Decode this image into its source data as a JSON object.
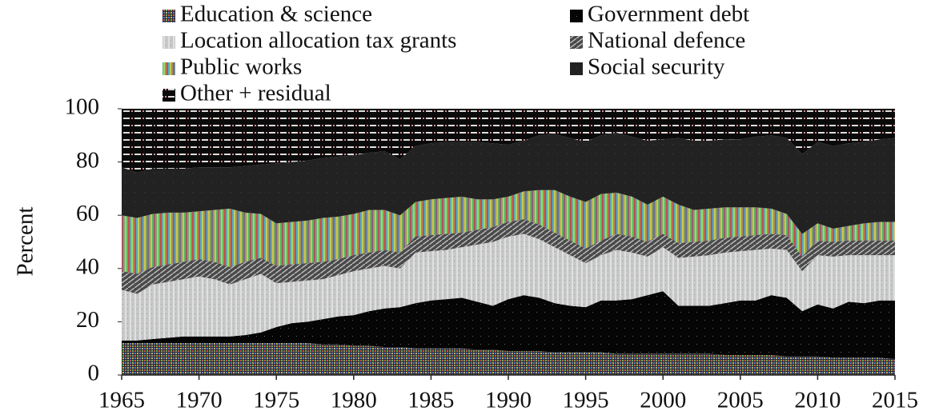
{
  "chart_data": {
    "type": "stacked_area",
    "y_label": "Percent",
    "x": [
      1965,
      1966,
      1967,
      1968,
      1969,
      1970,
      1971,
      1972,
      1973,
      1974,
      1975,
      1976,
      1977,
      1978,
      1979,
      1980,
      1981,
      1982,
      1983,
      1984,
      1985,
      1986,
      1987,
      1988,
      1989,
      1990,
      1991,
      1992,
      1993,
      1994,
      1995,
      1996,
      1997,
      1998,
      1999,
      2000,
      2001,
      2002,
      2003,
      2004,
      2005,
      2006,
      2007,
      2008,
      2009,
      2010,
      2011,
      2012,
      2013,
      2014,
      2015
    ],
    "xlim": [
      1965,
      2015
    ],
    "xticks": [
      1965,
      1970,
      1975,
      1980,
      1985,
      1990,
      1995,
      2000,
      2005,
      2010,
      2015
    ],
    "ylim": [
      0,
      100
    ],
    "yticks": [
      0,
      20,
      40,
      60,
      80,
      100
    ],
    "series": [
      {
        "name": "Education & science",
        "color": "#2a2a3a",
        "values": [
          12,
          12,
          12,
          12,
          12,
          12,
          12,
          12,
          12,
          12,
          12,
          12,
          12,
          11.5,
          11.5,
          11,
          11,
          10.5,
          10.5,
          10,
          10,
          10,
          10,
          9.5,
          9.5,
          9,
          9,
          9,
          8.5,
          8.5,
          8.5,
          8.5,
          8,
          8,
          8,
          8,
          8,
          8,
          8,
          7.5,
          7.5,
          7.5,
          7.5,
          7,
          7,
          7,
          6.5,
          6.5,
          6.5,
          6.5,
          6
        ]
      },
      {
        "name": "Government debt",
        "color": "#050505",
        "values": [
          1,
          1,
          1.5,
          2,
          2.5,
          2.5,
          2.5,
          2.5,
          3,
          4,
          6,
          7.5,
          8,
          9.5,
          10.5,
          11.5,
          13,
          14.5,
          15,
          17,
          18,
          18.5,
          19,
          18,
          16.5,
          19.5,
          21,
          20,
          18.5,
          17.5,
          17,
          19.5,
          20,
          20.5,
          22,
          23.5,
          18,
          18,
          18,
          19.5,
          20.5,
          20.5,
          22.5,
          22,
          17,
          19.5,
          18.5,
          21,
          20.5,
          21.5,
          22
        ]
      },
      {
        "name": "Location allocation tax grants",
        "color": "#c8c8c8",
        "values": [
          19,
          17.5,
          20.5,
          21,
          21.5,
          22.5,
          21.5,
          19.5,
          21,
          22,
          16.5,
          15.5,
          15.5,
          15,
          15.5,
          16.5,
          16,
          16,
          14.5,
          19,
          18.5,
          18.5,
          19,
          21.5,
          24,
          23.5,
          23,
          22,
          21,
          19,
          16.5,
          17,
          19,
          17.5,
          14.5,
          16.5,
          18,
          18.5,
          19,
          19,
          18.5,
          19,
          17.5,
          18,
          15,
          18.5,
          19.5,
          17.5,
          18,
          17,
          17
        ]
      },
      {
        "name": "National defence",
        "color": "#4a4a4a",
        "values": [
          7,
          7.5,
          6.5,
          6.5,
          6.5,
          6.5,
          6.5,
          6.5,
          6.5,
          6,
          6.5,
          6.5,
          6.5,
          6.5,
          6,
          6,
          6,
          6,
          6,
          6,
          6,
          6,
          5.5,
          5.5,
          5.5,
          5.5,
          5.5,
          5.5,
          5.5,
          5.5,
          5.5,
          5.5,
          6,
          6,
          5.5,
          5,
          5.5,
          5.5,
          5.5,
          5.5,
          5.5,
          5.5,
          5.5,
          5.5,
          5.5,
          5.5,
          5.5,
          5.5,
          5.5,
          5.5,
          5.5
        ]
      },
      {
        "name": "Public works",
        "color": "#6a4a8a",
        "values": [
          21,
          21,
          20,
          19.5,
          18.5,
          18,
          19.5,
          22,
          18.5,
          16.5,
          16,
          16,
          16,
          16.5,
          16,
          15.5,
          16,
          15,
          14,
          13,
          13.5,
          13.5,
          13.5,
          11.5,
          10.5,
          9.5,
          10.5,
          13,
          16,
          16.5,
          17.5,
          17.5,
          15.5,
          15,
          14,
          14,
          14.5,
          12,
          12,
          11.5,
          11,
          10.5,
          9.5,
          8,
          8.5,
          6.5,
          5,
          5.5,
          6.5,
          7,
          7
        ]
      },
      {
        "name": "Social security",
        "color": "#222222",
        "values": [
          18,
          17,
          17,
          16.5,
          16.5,
          16.5,
          16,
          15.5,
          17.5,
          18.5,
          22.5,
          22.5,
          22.5,
          22.5,
          22.5,
          22,
          21.5,
          22,
          21,
          21,
          21,
          21,
          20.5,
          21.5,
          21,
          19.5,
          19,
          20.5,
          21,
          22,
          22.5,
          22,
          22.5,
          22.5,
          24,
          21.5,
          25,
          26,
          25.5,
          25.5,
          25.5,
          26.5,
          27.5,
          28.5,
          30,
          30.5,
          31,
          31,
          30.5,
          31,
          31.5
        ]
      },
      {
        "name": "Other + residual",
        "color": "#0a0a0a",
        "values": [
          22,
          24,
          22.5,
          22.5,
          22.5,
          22,
          22,
          22,
          21.5,
          21,
          20.5,
          20,
          19.5,
          18.5,
          18,
          17.5,
          16.5,
          16,
          19,
          14,
          13,
          12.5,
          12.5,
          12.5,
          13,
          13.5,
          12,
          10,
          9.5,
          11,
          12.5,
          10,
          9,
          10.5,
          12,
          11.5,
          11,
          12,
          12,
          11.5,
          11.5,
          10.5,
          10,
          11,
          17,
          12.5,
          14,
          13,
          12.5,
          11.5,
          11
        ]
      }
    ]
  }
}
